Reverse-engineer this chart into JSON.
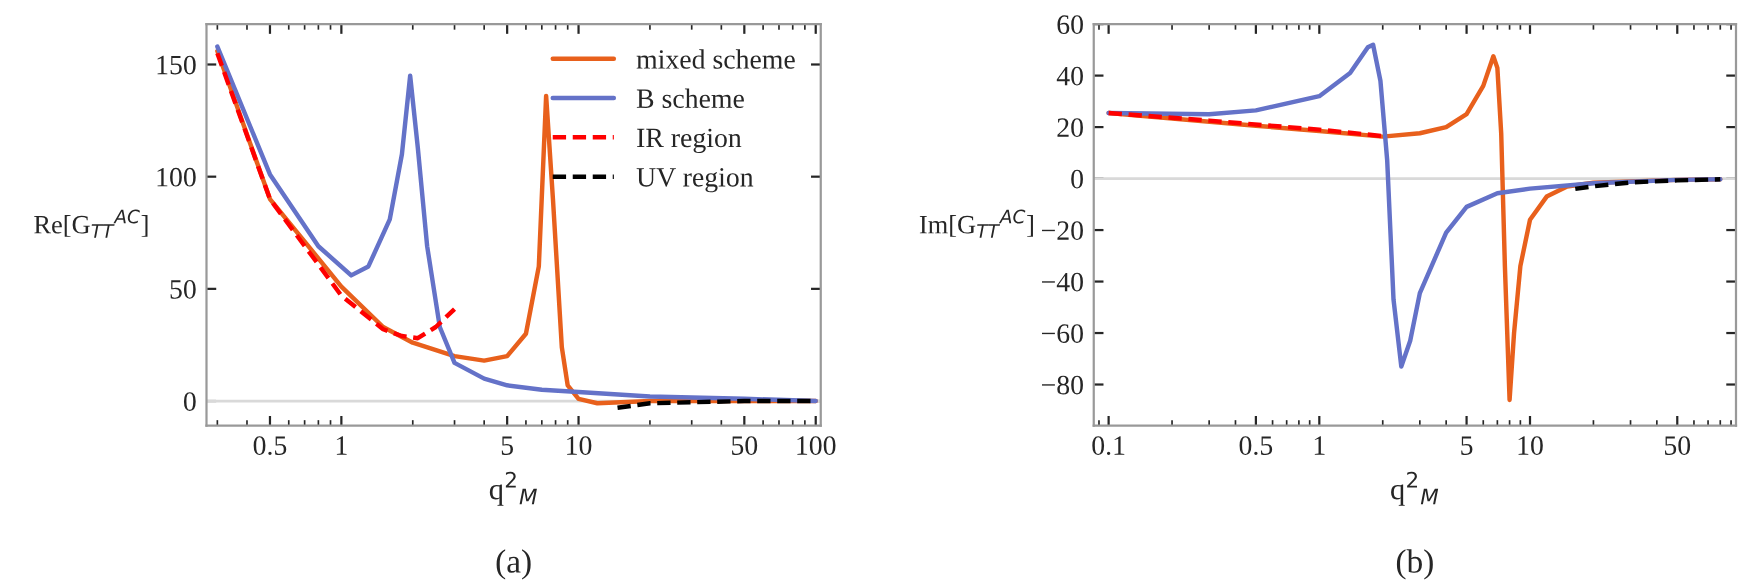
{
  "chart_data": [
    {
      "type": "line",
      "xlabel": "q$^{2}$$_{M}$",
      "ylabel": "Re[G$_{TT}$$^{AC}$]",
      "annotations": [
        "(a)"
      ],
      "log": "x",
      "legend": "top right",
      "line_style": "solid",
      "xlim": [
        0.27,
        105
      ],
      "ylim": [
        -11,
        168
      ],
      "xticks": [
        0.5,
        1,
        5,
        10,
        50,
        100
      ],
      "yticks": [
        0,
        50,
        100,
        150
      ],
      "ref_lines": [
        {
          "axis": "y",
          "value": 0,
          "color": "#d9d9d9"
        }
      ],
      "series": [
        {
          "name": "mixed scheme",
          "color": "#e8601c",
          "x": [
            0.3,
            0.5,
            1,
            1.5,
            2,
            3,
            4,
            5,
            6,
            6.8,
            7.3,
            7.8,
            8.5,
            9,
            10,
            12,
            20,
            100
          ],
          "values": [
            156,
            90,
            51,
            33,
            26,
            20,
            18,
            20,
            30,
            60,
            136,
            90,
            24,
            7,
            1,
            -1,
            0,
            0
          ]
        },
        {
          "name": "B scheme",
          "color": "#6472c8",
          "x": [
            0.3,
            0.5,
            0.8,
            1.1,
            1.3,
            1.6,
            1.8,
            1.95,
            2.1,
            2.3,
            2.6,
            3,
            4,
            5,
            7,
            10,
            20,
            50,
            100
          ],
          "values": [
            158,
            101,
            69,
            56,
            60,
            81,
            110,
            145,
            113,
            69,
            33,
            17,
            10,
            7,
            5,
            4,
            2,
            1,
            0
          ]
        },
        {
          "name": "IR region",
          "color": "#ff0000",
          "line_style": "dashed",
          "x": [
            0.3,
            0.5,
            1,
            1.5,
            1.8,
            2.1,
            2.5,
            3
          ],
          "values": [
            155,
            90,
            47,
            32,
            29,
            28,
            33,
            41
          ]
        },
        {
          "name": "UV region",
          "color": "#000000",
          "line_style": "dashed",
          "x": [
            14.6,
            20,
            50,
            100
          ],
          "values": [
            -3,
            -1,
            0,
            0
          ]
        }
      ]
    },
    {
      "type": "line",
      "xlabel": "q$^{2}$$_{M}$",
      "ylabel": "Im[G$_{TT}$$^{AC}$]",
      "annotations": [
        "(b)"
      ],
      "log": "x",
      "legend": false,
      "line_style": "solid",
      "xlim": [
        0.085,
        95
      ],
      "ylim": [
        -96,
        60
      ],
      "xticks": [
        0.1,
        0.5,
        1,
        5,
        10,
        50
      ],
      "yticks": [
        {
          "value": -80,
          "label": "−80"
        },
        {
          "value": -60,
          "label": "−60"
        },
        {
          "value": -40,
          "label": "−40"
        },
        {
          "value": -20,
          "label": "−20"
        },
        0,
        20,
        40,
        60
      ],
      "ref_lines": [
        {
          "axis": "y",
          "value": 0,
          "color": "#d9d9d9"
        }
      ],
      "series": [
        {
          "color": "#e8601c",
          "x": [
            0.1,
            0.5,
            1,
            2,
            3,
            4,
            5,
            6,
            6.7,
            7.0,
            7.3,
            7.6,
            8.0,
            8.4,
            9,
            10,
            12,
            15,
            20,
            50,
            80
          ],
          "values": [
            25.5,
            20.5,
            18.5,
            16.3,
            17.6,
            20,
            25,
            36,
            47.5,
            43,
            17.6,
            -34,
            -86,
            -60,
            -34,
            -16,
            -7,
            -3.1,
            -1.6,
            -0.5,
            -0.3
          ]
        },
        {
          "color": "#6472c8",
          "x": [
            0.1,
            0.3,
            0.5,
            1,
            1.4,
            1.7,
            1.8,
            1.95,
            2.1,
            2.25,
            2.45,
            2.7,
            3,
            4,
            5,
            7,
            10,
            20,
            50,
            80
          ],
          "values": [
            25.5,
            25,
            26.5,
            32,
            41,
            51,
            52,
            38,
            7,
            -47,
            -73,
            -63,
            -44.5,
            -21,
            -11,
            -5.7,
            -3.9,
            -1.8,
            -0.5,
            -0.3
          ]
        },
        {
          "color": "#ff0000",
          "line_style": "dashed",
          "x": [
            0.1,
            0.3,
            1,
            2
          ],
          "values": [
            25.5,
            22.5,
            19,
            16.5
          ]
        },
        {
          "color": "#000000",
          "line_style": "dashed",
          "x": [
            16.4,
            20,
            30,
            50,
            80
          ],
          "values": [
            -4,
            -3,
            -1.5,
            -0.7,
            -0.3
          ]
        }
      ]
    }
  ]
}
